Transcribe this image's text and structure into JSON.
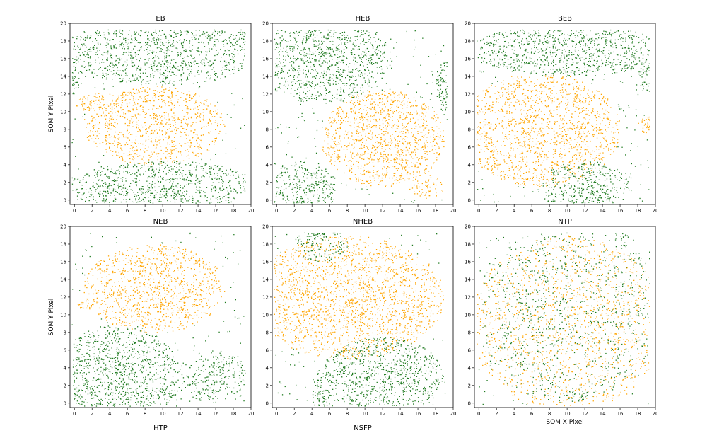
{
  "figure": {
    "colors": {
      "green": "#1f7a1f",
      "orange": "#ffa500",
      "frame": "#000000"
    },
    "y_axis_label": "SOM Y Pixel",
    "x_axis_label": "SOM X Pixel"
  },
  "chart_data": [
    {
      "type": "scatter",
      "title": "EB",
      "xlabel": "",
      "ylabel": "SOM Y Pixel",
      "xlim": [
        -0.5,
        20
      ],
      "ylim": [
        -0.5,
        20
      ],
      "xticks": [
        "0",
        "2",
        "4",
        "6",
        "8",
        "10",
        "12",
        "14",
        "16",
        "18",
        "20"
      ],
      "yticks": [
        "0",
        "2",
        "4",
        "6",
        "8",
        "10",
        "12",
        "14",
        "16",
        "18",
        "20"
      ],
      "series_colors": [
        "#1f7a1f",
        "#ffa500"
      ],
      "orange_regions": [
        {
          "cx": 9,
          "cy": 8.5,
          "rx": 8,
          "ry": 4.5,
          "strength": 0.75
        },
        {
          "cx": 4,
          "cy": 11,
          "rx": 4,
          "ry": 1.2,
          "strength": 0.9
        },
        {
          "cx": 11,
          "cy": 6,
          "rx": 1,
          "ry": 1,
          "strength": 1
        }
      ],
      "green_regions": [
        {
          "cx": 10,
          "cy": 17,
          "rx": 11,
          "ry": 4,
          "strength": 0.8
        },
        {
          "cx": 10,
          "cy": 1.5,
          "rx": 11,
          "ry": 3,
          "strength": 0.8
        },
        {
          "cx": 0,
          "cy": 15,
          "rx": 1,
          "ry": 3,
          "strength": 0.95
        }
      ]
    },
    {
      "type": "scatter",
      "title": "HEB",
      "xlabel": "",
      "ylabel": "",
      "xlim": [
        -0.5,
        20
      ],
      "ylim": [
        -0.5,
        20
      ],
      "xticks": [
        "0",
        "2",
        "4",
        "6",
        "8",
        "10",
        "12",
        "14",
        "16",
        "18",
        "20"
      ],
      "yticks": [
        "0",
        "2",
        "4",
        "6",
        "8",
        "10",
        "12",
        "14",
        "16",
        "18",
        "20"
      ],
      "series_colors": [
        "#1f7a1f",
        "#ffa500"
      ],
      "orange_regions": [
        {
          "cx": 12,
          "cy": 7,
          "rx": 7,
          "ry": 5.5,
          "strength": 0.8
        },
        {
          "cx": 12,
          "cy": 5,
          "rx": 2,
          "ry": 1,
          "strength": 1
        },
        {
          "cx": 17,
          "cy": 1.5,
          "rx": 2,
          "ry": 1.5,
          "strength": 0.6
        }
      ],
      "green_regions": [
        {
          "cx": 5,
          "cy": 16,
          "rx": 8,
          "ry": 5,
          "strength": 0.85
        },
        {
          "cx": 3,
          "cy": 1.5,
          "rx": 4,
          "ry": 3,
          "strength": 0.85
        },
        {
          "cx": 19,
          "cy": 13,
          "rx": 1,
          "ry": 3,
          "strength": 0.95
        }
      ]
    },
    {
      "type": "scatter",
      "title": "BEB",
      "xlabel": "",
      "ylabel": "",
      "xlim": [
        -0.5,
        20
      ],
      "ylim": [
        -0.5,
        20
      ],
      "xticks": [
        "0",
        "2",
        "4",
        "6",
        "8",
        "10",
        "12",
        "14",
        "16",
        "18",
        "20"
      ],
      "yticks": [
        "0",
        "2",
        "4",
        "6",
        "8",
        "10",
        "12",
        "14",
        "16",
        "18",
        "20"
      ],
      "series_colors": [
        "#1f7a1f",
        "#ffa500"
      ],
      "orange_regions": [
        {
          "cx": 7,
          "cy": 8,
          "rx": 9,
          "ry": 6.5,
          "strength": 0.75
        },
        {
          "cx": 0.5,
          "cy": 7.5,
          "rx": 1.2,
          "ry": 1,
          "strength": 1
        },
        {
          "cx": 19,
          "cy": 8.5,
          "rx": 1,
          "ry": 1,
          "strength": 1
        }
      ],
      "green_regions": [
        {
          "cx": 10,
          "cy": 17,
          "rx": 11,
          "ry": 3,
          "strength": 0.85
        },
        {
          "cx": 12,
          "cy": 1.5,
          "rx": 5,
          "ry": 3,
          "strength": 0.8
        },
        {
          "cx": 19,
          "cy": 15,
          "rx": 1,
          "ry": 3,
          "strength": 0.9
        }
      ]
    },
    {
      "type": "scatter",
      "title": "NEB",
      "xlabel": "",
      "ylabel": "SOM Y Pixel",
      "xlim": [
        -0.5,
        20
      ],
      "ylim": [
        -0.5,
        20
      ],
      "xticks": [
        "0",
        "2",
        "4",
        "6",
        "8",
        "10",
        "12",
        "14",
        "16",
        "18",
        "20"
      ],
      "yticks": [
        "0",
        "2",
        "4",
        "6",
        "8",
        "10",
        "12",
        "14",
        "16",
        "18",
        "20"
      ],
      "series_colors": [
        "#1f7a1f",
        "#ffa500"
      ],
      "orange_regions": [
        {
          "cx": 9,
          "cy": 13,
          "rx": 8,
          "ry": 5,
          "strength": 0.75
        },
        {
          "cx": 10,
          "cy": 12,
          "rx": 0.6,
          "ry": 4.5,
          "strength": 1
        },
        {
          "cx": 1,
          "cy": 11,
          "rx": 1,
          "ry": 0.6,
          "strength": 0.9
        }
      ],
      "green_regions": [
        {
          "cx": 5,
          "cy": 3,
          "rx": 7,
          "ry": 6,
          "strength": 0.85
        },
        {
          "cx": 5,
          "cy": 5,
          "rx": 2.5,
          "ry": 0.7,
          "strength": 1
        },
        {
          "cx": 16,
          "cy": 3,
          "rx": 4,
          "ry": 3,
          "strength": 0.6
        }
      ]
    },
    {
      "type": "scatter",
      "title": "NHEB",
      "xlabel": "",
      "ylabel": "",
      "xlim": [
        -0.5,
        20
      ],
      "ylim": [
        -0.5,
        20
      ],
      "xticks": [
        "0",
        "2",
        "4",
        "6",
        "8",
        "10",
        "12",
        "14",
        "16",
        "18",
        "20"
      ],
      "yticks": [
        "0",
        "2",
        "4",
        "6",
        "8",
        "10",
        "12",
        "14",
        "16",
        "18",
        "20"
      ],
      "series_colors": [
        "#1f7a1f",
        "#ffa500"
      ],
      "orange_regions": [
        {
          "cx": 8,
          "cy": 12,
          "rx": 11,
          "ry": 7,
          "strength": 0.75
        },
        {
          "cx": 3,
          "cy": 12.5,
          "rx": 1,
          "ry": 1,
          "strength": 1
        }
      ],
      "green_regions": [
        {
          "cx": 12,
          "cy": 3,
          "rx": 7,
          "ry": 4.5,
          "strength": 0.85
        },
        {
          "cx": 5,
          "cy": 18,
          "rx": 3,
          "ry": 2,
          "strength": 0.9
        },
        {
          "cx": 5,
          "cy": 1,
          "rx": 1,
          "ry": 3,
          "strength": 0.95
        }
      ]
    },
    {
      "type": "scatter",
      "title": "NTP",
      "xlabel": "SOM X Pixel",
      "ylabel": "",
      "xlim": [
        -0.5,
        20
      ],
      "ylim": [
        -0.5,
        20
      ],
      "xticks": [
        "0",
        "2",
        "4",
        "6",
        "8",
        "10",
        "12",
        "14",
        "16",
        "18",
        "20"
      ],
      "yticks": [
        "0",
        "2",
        "4",
        "6",
        "8",
        "10",
        "12",
        "14",
        "16",
        "18",
        "20"
      ],
      "series_colors": [
        "#1f7a1f",
        "#ffa500"
      ],
      "orange_regions": [
        {
          "cx": 10,
          "cy": 9,
          "rx": 11,
          "ry": 10,
          "strength": 0.35
        }
      ],
      "green_regions": [
        {
          "cx": 10,
          "cy": 10,
          "rx": 11,
          "ry": 10,
          "strength": 0.25
        },
        {
          "cx": 11,
          "cy": 1,
          "rx": 2,
          "ry": 0.6,
          "strength": 0.9
        },
        {
          "cx": 16,
          "cy": 18.5,
          "rx": 1,
          "ry": 1,
          "strength": 0.9
        }
      ]
    }
  ],
  "partial_panels": [
    {
      "title": "HTP"
    },
    {
      "title": "NSFP"
    }
  ]
}
